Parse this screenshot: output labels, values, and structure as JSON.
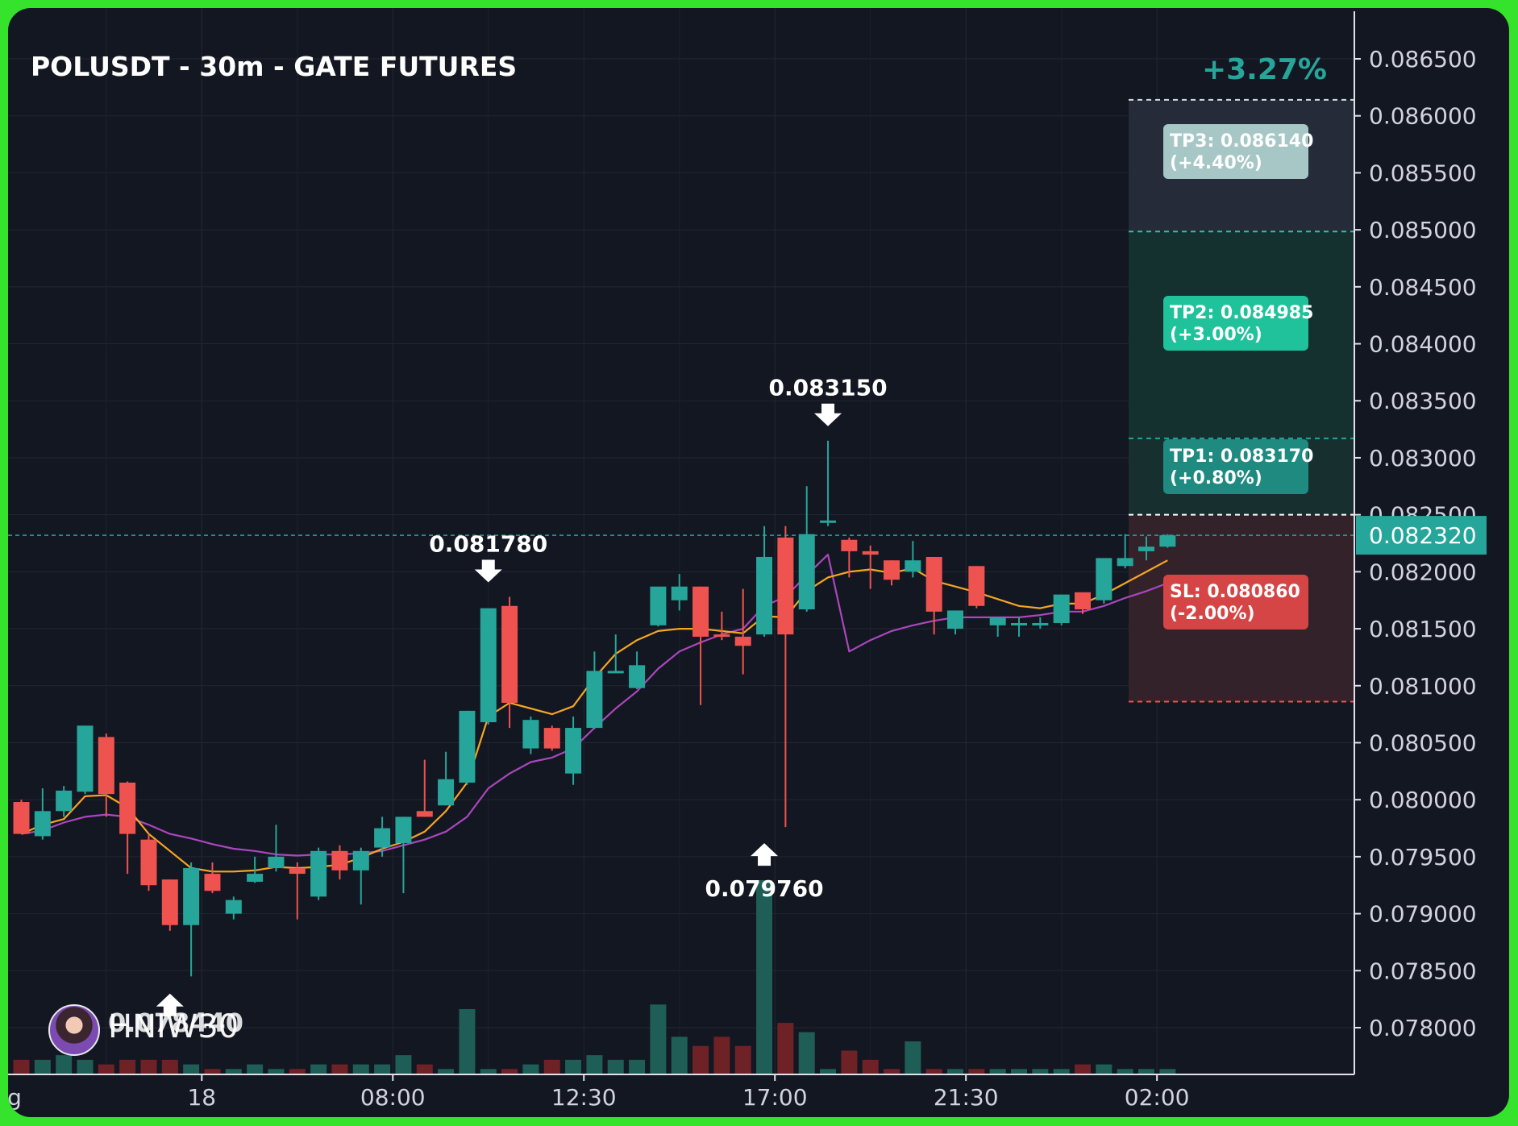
{
  "title": "POLUSDT - 30m - GATE FUTURES",
  "change_pct": "+3.27%",
  "watermark": "HNIW30",
  "colors": {
    "up": "#26a69a",
    "down": "#ef5350",
    "ema_fast": "#f5a623",
    "ema_slow": "#ab47bc",
    "background": "#131722"
  },
  "chart_data": {
    "type": "candlestick",
    "title": "POLUSDT - 30m - GATE FUTURES",
    "y_ticks": [
      "0.086500",
      "0.086000",
      "0.085500",
      "0.085000",
      "0.084500",
      "0.084000",
      "0.083500",
      "0.083000",
      "0.082500",
      "0.082000",
      "0.081500",
      "0.081000",
      "0.080500",
      "0.080000",
      "0.079500",
      "0.079000",
      "0.078500",
      "0.078000"
    ],
    "ylim": [
      0.0776,
      0.0867
    ],
    "x_ticks": [
      {
        "label": "g",
        "candle": -0.6
      },
      {
        "label": "18",
        "candle": 8.5
      },
      {
        "label": "08:00",
        "candle": 17.5
      },
      {
        "label": "12:30",
        "candle": 26.5
      },
      {
        "label": "17:00",
        "candle": 35.5
      },
      {
        "label": "21:30",
        "candle": 44.5
      },
      {
        "label": "02:00",
        "candle": 53.5
      }
    ],
    "candles": [
      {
        "o": 0.07998,
        "h": 0.08,
        "l": 0.0797,
        "c": 0.0797
      },
      {
        "o": 0.07968,
        "h": 0.0801,
        "l": 0.07965,
        "c": 0.0799
      },
      {
        "o": 0.0799,
        "h": 0.08012,
        "l": 0.07985,
        "c": 0.08008
      },
      {
        "o": 0.08007,
        "h": 0.08065,
        "l": 0.08005,
        "c": 0.08065
      },
      {
        "o": 0.08055,
        "h": 0.08058,
        "l": 0.07985,
        "c": 0.08005
      },
      {
        "o": 0.08015,
        "h": 0.08016,
        "l": 0.07935,
        "c": 0.0797
      },
      {
        "o": 0.07965,
        "h": 0.0797,
        "l": 0.0792,
        "c": 0.07925
      },
      {
        "o": 0.0793,
        "h": 0.0793,
        "l": 0.07885,
        "c": 0.0789
      },
      {
        "o": 0.0789,
        "h": 0.07945,
        "l": 0.07845,
        "c": 0.0794
      },
      {
        "o": 0.07935,
        "h": 0.07945,
        "l": 0.07918,
        "c": 0.0792
      },
      {
        "o": 0.079,
        "h": 0.07915,
        "l": 0.07895,
        "c": 0.07912
      },
      {
        "o": 0.07928,
        "h": 0.0795,
        "l": 0.07927,
        "c": 0.07935
      },
      {
        "o": 0.0794,
        "h": 0.07978,
        "l": 0.07937,
        "c": 0.0795
      },
      {
        "o": 0.0794,
        "h": 0.07945,
        "l": 0.07895,
        "c": 0.07935
      },
      {
        "o": 0.07915,
        "h": 0.07958,
        "l": 0.07912,
        "c": 0.07955
      },
      {
        "o": 0.07955,
        "h": 0.0796,
        "l": 0.0793,
        "c": 0.07938
      },
      {
        "o": 0.07938,
        "h": 0.07958,
        "l": 0.07908,
        "c": 0.07955
      },
      {
        "o": 0.07958,
        "h": 0.07985,
        "l": 0.0795,
        "c": 0.07975
      },
      {
        "o": 0.07962,
        "h": 0.07985,
        "l": 0.07918,
        "c": 0.07985
      },
      {
        "o": 0.0799,
        "h": 0.08035,
        "l": 0.07985,
        "c": 0.07985
      },
      {
        "o": 0.07995,
        "h": 0.08042,
        "l": 0.07995,
        "c": 0.08018
      },
      {
        "o": 0.08015,
        "h": 0.08078,
        "l": 0.08013,
        "c": 0.08078
      },
      {
        "o": 0.08068,
        "h": 0.08168,
        "l": 0.08066,
        "c": 0.08168
      },
      {
        "o": 0.0817,
        "h": 0.08178,
        "l": 0.08063,
        "c": 0.08085
      },
      {
        "o": 0.08045,
        "h": 0.08073,
        "l": 0.0804,
        "c": 0.0807
      },
      {
        "o": 0.08063,
        "h": 0.08065,
        "l": 0.08043,
        "c": 0.08045
      },
      {
        "o": 0.08023,
        "h": 0.08073,
        "l": 0.08013,
        "c": 0.08063
      },
      {
        "o": 0.08063,
        "h": 0.0813,
        "l": 0.08062,
        "c": 0.08113
      },
      {
        "o": 0.08112,
        "h": 0.08145,
        "l": 0.08111,
        "c": 0.08113
      },
      {
        "o": 0.08098,
        "h": 0.0813,
        "l": 0.08097,
        "c": 0.08118
      },
      {
        "o": 0.08153,
        "h": 0.08185,
        "l": 0.08152,
        "c": 0.08187
      },
      {
        "o": 0.08175,
        "h": 0.08198,
        "l": 0.08166,
        "c": 0.08187
      },
      {
        "o": 0.08187,
        "h": 0.08187,
        "l": 0.08083,
        "c": 0.08143
      },
      {
        "o": 0.08145,
        "h": 0.08165,
        "l": 0.0814,
        "c": 0.08143
      },
      {
        "o": 0.08143,
        "h": 0.08185,
        "l": 0.0811,
        "c": 0.08135
      },
      {
        "o": 0.08145,
        "h": 0.0824,
        "l": 0.08143,
        "c": 0.08213
      },
      {
        "o": 0.0823,
        "h": 0.0824,
        "l": 0.07976,
        "c": 0.08145
      },
      {
        "o": 0.08167,
        "h": 0.08275,
        "l": 0.08165,
        "c": 0.08233
      },
      {
        "o": 0.08243,
        "h": 0.08315,
        "l": 0.0824,
        "c": 0.08245
      },
      {
        "o": 0.08228,
        "h": 0.0823,
        "l": 0.08195,
        "c": 0.08218
      },
      {
        "o": 0.08218,
        "h": 0.08223,
        "l": 0.08185,
        "c": 0.08215
      },
      {
        "o": 0.0821,
        "h": 0.0821,
        "l": 0.08188,
        "c": 0.08193
      },
      {
        "o": 0.082,
        "h": 0.08227,
        "l": 0.08195,
        "c": 0.0821
      },
      {
        "o": 0.08213,
        "h": 0.08213,
        "l": 0.08145,
        "c": 0.08165
      },
      {
        "o": 0.0815,
        "h": 0.08166,
        "l": 0.08145,
        "c": 0.08166
      },
      {
        "o": 0.08205,
        "h": 0.08205,
        "l": 0.08168,
        "c": 0.0817
      },
      {
        "o": 0.08153,
        "h": 0.0816,
        "l": 0.08143,
        "c": 0.0816
      },
      {
        "o": 0.08153,
        "h": 0.0816,
        "l": 0.08143,
        "c": 0.08155
      },
      {
        "o": 0.08153,
        "h": 0.0816,
        "l": 0.0815,
        "c": 0.08155
      },
      {
        "o": 0.08155,
        "h": 0.0818,
        "l": 0.08153,
        "c": 0.0818
      },
      {
        "o": 0.08182,
        "h": 0.08182,
        "l": 0.08163,
        "c": 0.08167
      },
      {
        "o": 0.08175,
        "h": 0.08212,
        "l": 0.08172,
        "c": 0.08212
      },
      {
        "o": 0.08205,
        "h": 0.08233,
        "l": 0.08203,
        "c": 0.08212
      },
      {
        "o": 0.08218,
        "h": 0.08231,
        "l": 0.0821,
        "c": 0.08222
      },
      {
        "o": 0.08222,
        "h": 0.08233,
        "l": 0.08221,
        "c": 0.08232
      }
    ],
    "volume_max": 0.42,
    "volumes": [
      0.03,
      0.03,
      0.04,
      0.03,
      0.02,
      0.03,
      0.03,
      0.03,
      0.02,
      0.01,
      0.01,
      0.02,
      0.01,
      0.01,
      0.02,
      0.02,
      0.02,
      0.02,
      0.04,
      0.02,
      0.01,
      0.14,
      0.01,
      0.01,
      0.02,
      0.03,
      0.03,
      0.04,
      0.03,
      0.03,
      0.15,
      0.08,
      0.06,
      0.08,
      0.06,
      0.42,
      0.11,
      0.09,
      0.01,
      0.05,
      0.03,
      0.01,
      0.07,
      0.01,
      0.01,
      0.01,
      0.01,
      0.01,
      0.01,
      0.01,
      0.02,
      0.02,
      0.01,
      0.01,
      0.01
    ],
    "ema_fast": [
      0.0797,
      0.07978,
      0.07983,
      0.08003,
      0.08004,
      0.07993,
      0.0797,
      0.07955,
      0.0794,
      0.07937,
      0.07937,
      0.07938,
      0.07941,
      0.0794,
      0.07941,
      0.07943,
      0.07949,
      0.07957,
      0.07963,
      0.07972,
      0.0799,
      0.08015,
      0.08073,
      0.08085,
      0.0808,
      0.08075,
      0.08082,
      0.08107,
      0.08128,
      0.0814,
      0.08148,
      0.0815,
      0.0815,
      0.08148,
      0.08146,
      0.08161,
      0.0816,
      0.08183,
      0.08195,
      0.082,
      0.08202,
      0.08199,
      0.08203,
      0.08192,
      0.08187,
      0.08182,
      0.08176,
      0.0817,
      0.08168,
      0.08172,
      0.08172,
      0.0818,
      0.0819,
      0.082,
      0.0821
    ],
    "ema_slow": [
      0.0797,
      0.07973,
      0.0798,
      0.07985,
      0.07987,
      0.07985,
      0.07978,
      0.0797,
      0.07966,
      0.07961,
      0.07957,
      0.07955,
      0.07952,
      0.07951,
      0.07952,
      0.07952,
      0.07953,
      0.07955,
      0.0796,
      0.07965,
      0.07972,
      0.07985,
      0.0801,
      0.08023,
      0.08033,
      0.08037,
      0.08045,
      0.08063,
      0.0808,
      0.08095,
      0.08115,
      0.0813,
      0.08138,
      0.08145,
      0.0815,
      0.0817,
      0.08178,
      0.08197,
      0.08215,
      0.0813,
      0.0814,
      0.08148,
      0.08153,
      0.08157,
      0.0816,
      0.0816,
      0.0816,
      0.0816,
      0.08162,
      0.08165,
      0.08165,
      0.0817,
      0.08177,
      0.08183,
      0.0819
    ],
    "current_price": {
      "value": "0.082320",
      "price": 0.08232
    },
    "annotations": [
      {
        "label": "0.083150",
        "candle": 38,
        "price": 0.08315,
        "pos": "above"
      },
      {
        "label": "0.081780",
        "candle": 22,
        "price": 0.08178,
        "pos": "above"
      },
      {
        "label": "0.079760",
        "candle": 35,
        "price": 0.07976,
        "pos": "below"
      },
      {
        "label": "0.078440",
        "candle": 7,
        "price": 0.07844,
        "pos": "below"
      }
    ],
    "trade": {
      "entry": 0.0825,
      "targets": [
        {
          "label": "TP3: 0.086140",
          "pct": "(+4.40%)",
          "price": 0.08614
        },
        {
          "label": "TP2: 0.084985",
          "pct": "(+3.00%)",
          "price": 0.084985
        },
        {
          "label": "TP1: 0.083170",
          "pct": "(+0.80%)",
          "price": 0.08317
        }
      ],
      "stop": {
        "label": "SL: 0.080860",
        "pct": "(-2.00%)",
        "price": 0.08086
      }
    }
  }
}
